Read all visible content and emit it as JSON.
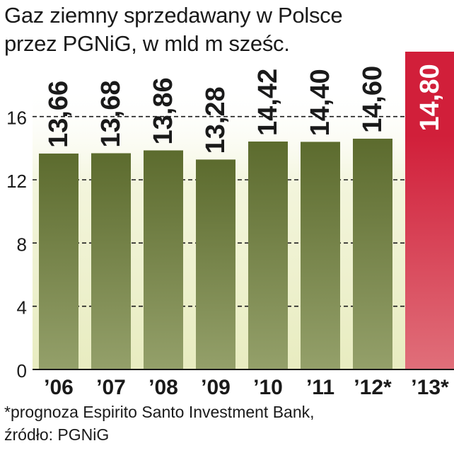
{
  "title": {
    "line1": "Gaz ziemny sprzedawany w Polsce",
    "line2": "przez PGNiG, w mld m sześc."
  },
  "footnote": {
    "line1": "*prognoza Espirito Santo Investment Bank,",
    "line2": "źródło: PGNiG"
  },
  "colors": {
    "bar": "#5c6b2e",
    "bar_light": "#94a06a",
    "highlight_bar": "#d11f3a",
    "highlight_bar_light": "#e06f7a",
    "plot_background": "#eff2cf",
    "label_text": "#1a1a1a"
  },
  "chart_data": {
    "type": "bar",
    "categories": [
      "’06",
      "’07",
      "’08",
      "’09",
      "’10",
      "’11",
      "’12*",
      "’13*"
    ],
    "values": [
      13.66,
      13.68,
      13.86,
      13.28,
      14.42,
      14.4,
      14.6,
      14.8
    ],
    "value_labels": [
      "13,66",
      "13,68",
      "13,86",
      "13,28",
      "14,42",
      "14,40",
      "14,60",
      "14,80"
    ],
    "highlighted_index": 7,
    "ylim": [
      0,
      18
    ],
    "yticks": [
      0,
      4,
      8,
      12,
      16
    ],
    "grid": "dashed-horizontal"
  }
}
